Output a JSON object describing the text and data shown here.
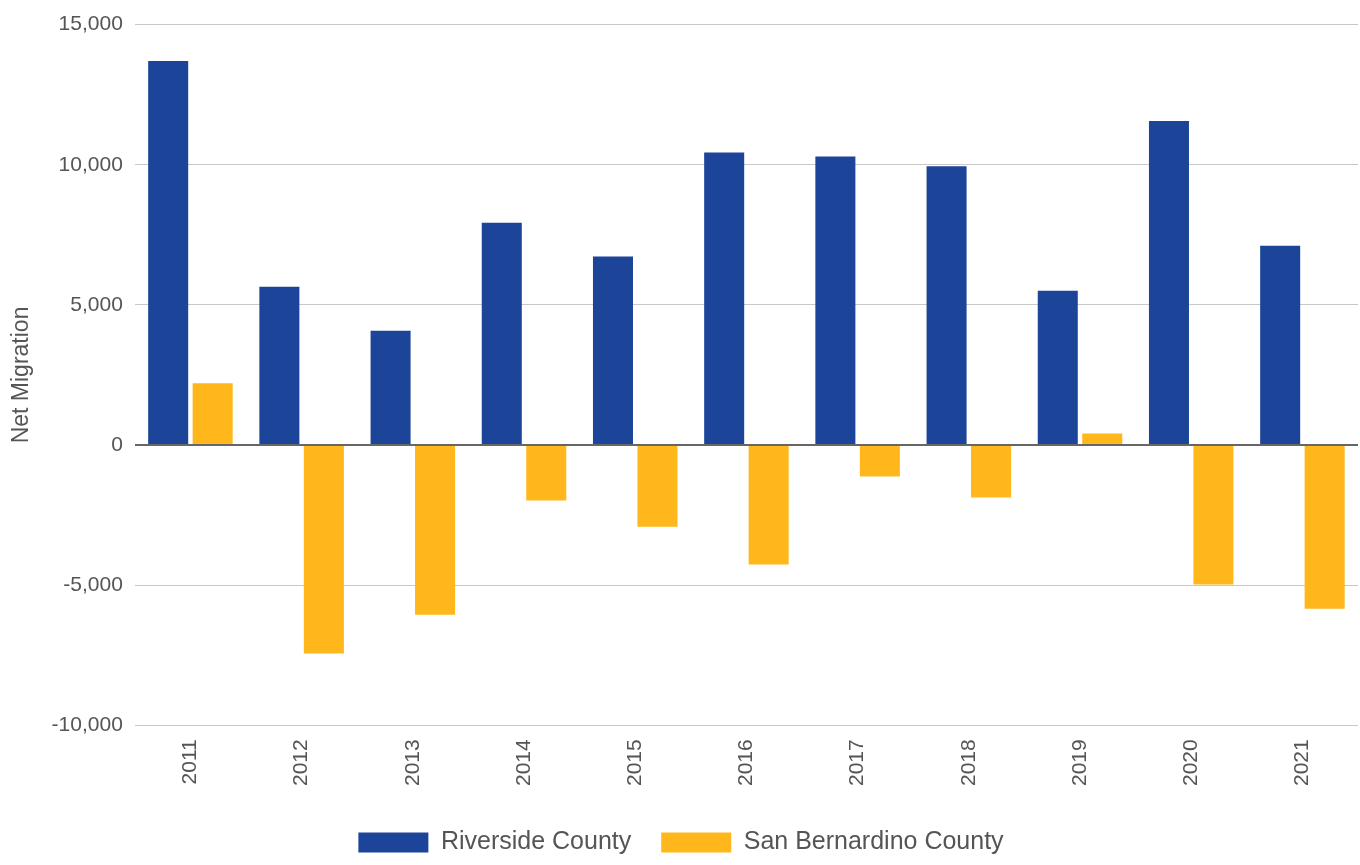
{
  "chart_data": {
    "type": "bar",
    "ylabel": "Net Migration",
    "categories": [
      "2011",
      "2012",
      "2013",
      "2014",
      "2015",
      "2016",
      "2017",
      "2018",
      "2019",
      "2020",
      "2021"
    ],
    "series": [
      {
        "name": "Riverside County",
        "color": "#1c4599",
        "values": [
          13700,
          5650,
          4080,
          7930,
          6730,
          10440,
          10290,
          9950,
          5500,
          11560,
          7110
        ]
      },
      {
        "name": "San Bernardino County",
        "color": "#ffb71b",
        "values": [
          2200,
          -7440,
          -6060,
          -1980,
          -2920,
          -4260,
          -1120,
          -1870,
          410,
          -4980,
          -5840
        ]
      }
    ],
    "ylim": [
      -10000,
      15000
    ],
    "yticks": [
      {
        "value": -10000,
        "label": "-10,000"
      },
      {
        "value": -5000,
        "label": "-5,000"
      },
      0,
      {
        "value": 5000,
        "label": "5,000"
      },
      {
        "value": 10000,
        "label": "10,000"
      },
      {
        "value": 15000,
        "label": "15,000"
      }
    ],
    "grid": "y",
    "legend": "bottom"
  }
}
